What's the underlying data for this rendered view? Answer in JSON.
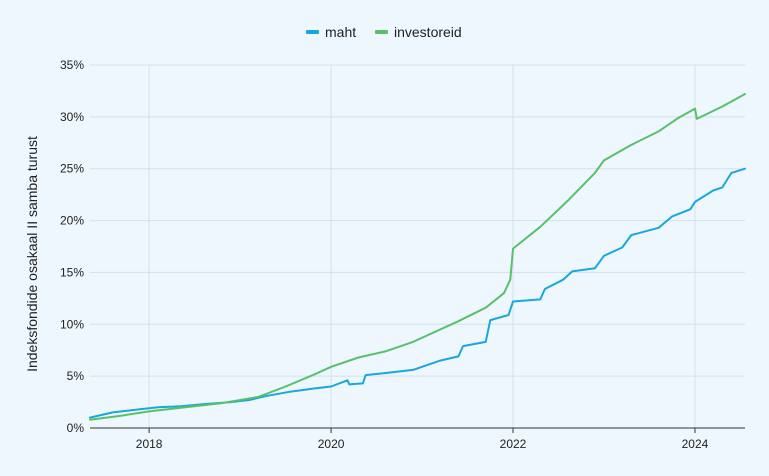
{
  "chart_data": {
    "type": "line",
    "title": "",
    "xlabel": "",
    "ylabel": "Indeksfondide osakaal II samba turust",
    "x_ticks": [
      "2018",
      "2020",
      "2022",
      "2024"
    ],
    "y_ticks": [
      "0%",
      "5%",
      "10%",
      "15%",
      "20%",
      "25%",
      "30%",
      "35%"
    ],
    "xlim": [
      2017.35,
      2024.55
    ],
    "ylim": [
      0,
      35
    ],
    "grid": true,
    "legend_position": "top-center",
    "series": [
      {
        "name": "maht",
        "color": "#1aa7dd",
        "x": [
          2017.35,
          2017.6,
          2017.9,
          2018.1,
          2018.35,
          2018.6,
          2018.9,
          2019.1,
          2019.3,
          2019.55,
          2019.8,
          2020.0,
          2020.18,
          2020.2,
          2020.35,
          2020.38,
          2020.6,
          2020.9,
          2021.1,
          2021.2,
          2021.4,
          2021.45,
          2021.7,
          2021.75,
          2021.95,
          2022.0,
          2022.3,
          2022.35,
          2022.55,
          2022.65,
          2022.9,
          2023.0,
          2023.2,
          2023.3,
          2023.6,
          2023.75,
          2023.95,
          2024.0,
          2024.2,
          2024.3,
          2024.4,
          2024.55
        ],
        "values": [
          1.0,
          1.5,
          1.8,
          2.0,
          2.1,
          2.3,
          2.5,
          2.7,
          3.1,
          3.5,
          3.8,
          4.0,
          4.6,
          4.2,
          4.3,
          5.1,
          5.3,
          5.6,
          6.2,
          6.5,
          6.9,
          7.9,
          8.3,
          10.4,
          10.9,
          12.2,
          12.4,
          13.4,
          14.3,
          15.1,
          15.4,
          16.6,
          17.4,
          18.6,
          19.3,
          20.4,
          21.1,
          21.8,
          22.9,
          23.2,
          24.6,
          25.0
        ]
      },
      {
        "name": "investoreid",
        "color": "#57c16a",
        "x": [
          2017.35,
          2017.7,
          2018.0,
          2018.4,
          2018.8,
          2019.2,
          2019.5,
          2019.8,
          2020.0,
          2020.3,
          2020.6,
          2020.9,
          2021.1,
          2021.4,
          2021.7,
          2021.9,
          2021.97,
          2022.0,
          2022.3,
          2022.6,
          2022.9,
          2023.0,
          2023.3,
          2023.6,
          2023.8,
          2024.0,
          2024.02,
          2024.3,
          2024.55
        ],
        "values": [
          0.8,
          1.2,
          1.6,
          2.0,
          2.4,
          3.0,
          4.0,
          5.1,
          5.9,
          6.8,
          7.4,
          8.3,
          9.1,
          10.3,
          11.6,
          13.0,
          14.3,
          17.3,
          19.4,
          21.9,
          24.6,
          25.8,
          27.3,
          28.6,
          29.8,
          30.8,
          29.8,
          31.0,
          32.2
        ]
      }
    ]
  }
}
